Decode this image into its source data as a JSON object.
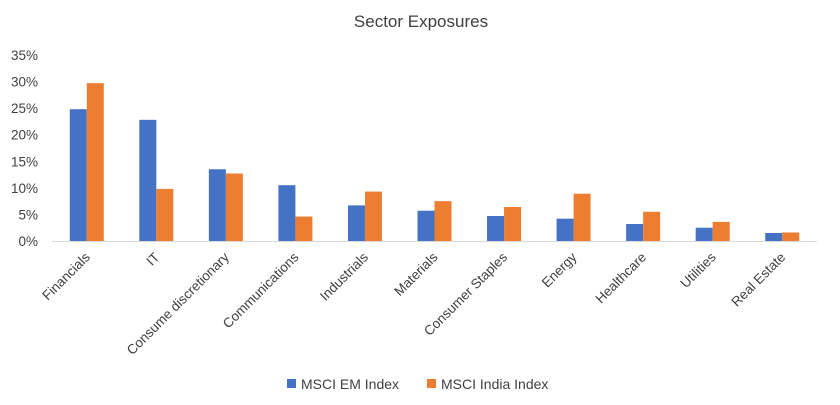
{
  "chart_data": {
    "type": "bar",
    "title": "Sector Exposures",
    "xlabel": "",
    "ylabel": "",
    "categories": [
      "Financials",
      "IT",
      "Consume discretionary",
      "Communications",
      "Industrials",
      "Materials",
      "Consumer Staples",
      "Energy",
      "Healthcare",
      "Utilities",
      "Real Estate"
    ],
    "series": [
      {
        "name": "MSCI EM Index",
        "values": [
          24.8,
          22.8,
          13.5,
          10.5,
          6.7,
          5.7,
          4.7,
          4.2,
          3.2,
          2.5,
          1.5
        ],
        "color": "#4472c4"
      },
      {
        "name": "MSCI India Index",
        "values": [
          29.7,
          9.8,
          12.7,
          4.6,
          9.3,
          7.5,
          6.4,
          8.9,
          5.5,
          3.6,
          1.6
        ],
        "color": "#ed7d31"
      }
    ],
    "ylim": [
      0,
      35
    ],
    "yticks": [
      "0%",
      "5%",
      "10%",
      "15%",
      "20%",
      "25%",
      "30%",
      "35%"
    ],
    "ytick_values": [
      0,
      5,
      10,
      15,
      20,
      25,
      30,
      35
    ],
    "grid": false,
    "legend_position": "bottom"
  }
}
